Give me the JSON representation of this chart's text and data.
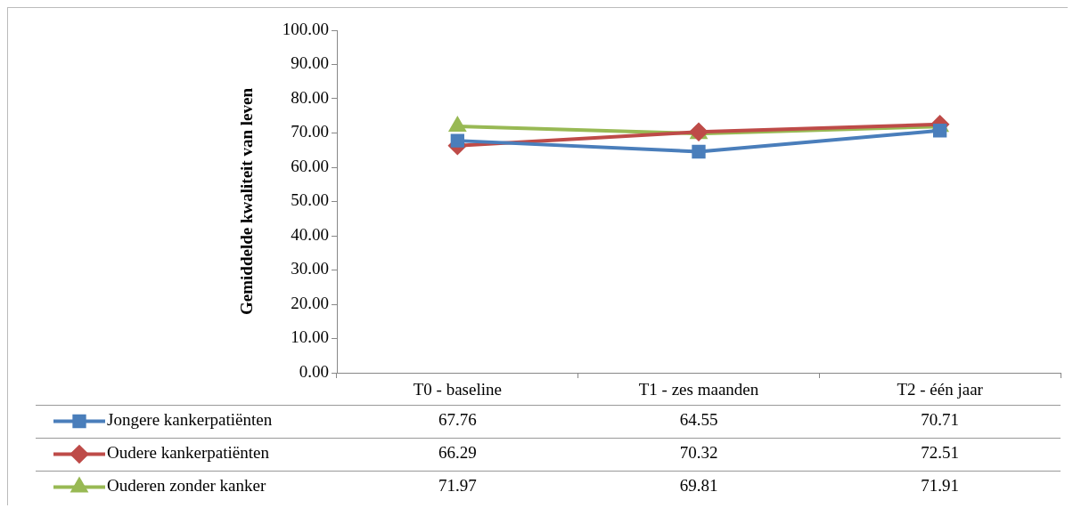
{
  "chart_data": {
    "type": "line",
    "ylabel": "Gemiddelde kwaliteit van leven",
    "categories": [
      "T0 - baseline",
      "T1 - zes maanden",
      "T2 - één jaar"
    ],
    "series": [
      {
        "name": "Jongere kankerpatiënten",
        "color": "#4a7ebb",
        "marker": "square",
        "values": [
          67.76,
          64.55,
          70.71
        ]
      },
      {
        "name": "Oudere kankerpatiënten",
        "color": "#be4b48",
        "marker": "diamond",
        "values": [
          66.29,
          70.32,
          72.51
        ]
      },
      {
        "name": "Ouderen zonder kanker",
        "color": "#98b954",
        "marker": "triangle",
        "values": [
          71.97,
          69.81,
          71.91
        ]
      }
    ],
    "ylim": [
      0,
      100
    ],
    "yticks": [
      {
        "value": 0,
        "label": "0.00"
      },
      {
        "value": 10,
        "label": "10.00"
      },
      {
        "value": 20,
        "label": "20.00"
      },
      {
        "value": 30,
        "label": "30.00"
      },
      {
        "value": 40,
        "label": "40.00"
      },
      {
        "value": 50,
        "label": "50.00"
      },
      {
        "value": 60,
        "label": "60.00"
      },
      {
        "value": 70,
        "label": "70.00"
      },
      {
        "value": 80,
        "label": "80.00"
      },
      {
        "value": 90,
        "label": "90.00"
      },
      {
        "value": 100,
        "label": "100.00"
      }
    ],
    "grid": false,
    "legend": "bottom",
    "data_labels": true,
    "line_style": "solid"
  }
}
